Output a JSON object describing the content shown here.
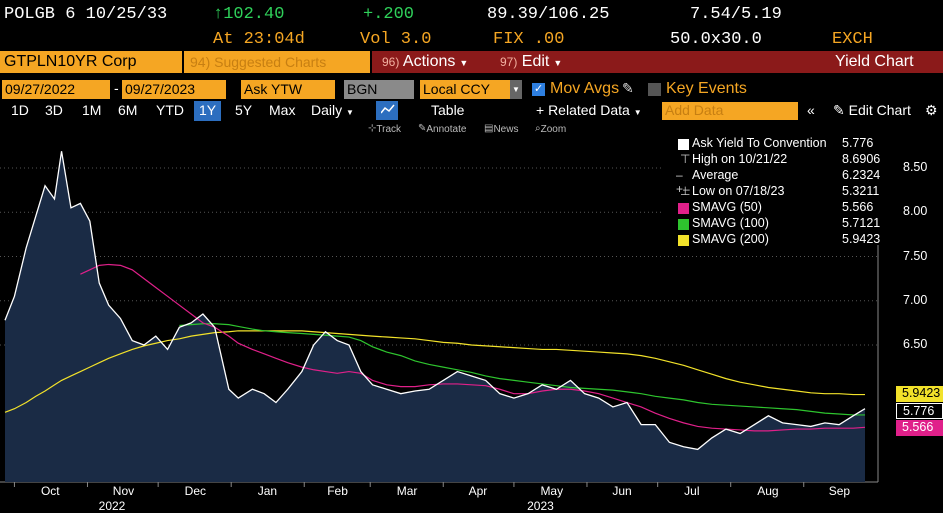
{
  "quote": {
    "ticker": "POLGB 6 10/25/33",
    "price": "↑102.40",
    "change": "+.200",
    "range": "89.39/106.25",
    "yield_range": "7.54/5.19",
    "time": "At 23:04d",
    "volume": "Vol 3.0",
    "fix": "FIX .00",
    "size": "50.0x30.0",
    "exch": "EXCH"
  },
  "toolbar": {
    "security": "GTPLN10YR Corp",
    "suggested_num": "94)",
    "suggested": "Suggested Charts",
    "actions_num": "96)",
    "actions": "Actions",
    "edit_num": "97)",
    "edit": "Edit",
    "title": "Yield Chart"
  },
  "options": {
    "start_date": "09/27/2022",
    "dash": "-",
    "end_date": "09/27/2023",
    "field": "Ask YTW",
    "source": "BGN",
    "currency": "Local CCY",
    "mov_avgs": "Mov Avgs",
    "key_events": "Key Events"
  },
  "periods": {
    "items": [
      "1D",
      "3D",
      "1M",
      "6M",
      "YTD",
      "1Y",
      "5Y",
      "Max"
    ],
    "active": "1Y",
    "daily": "Daily",
    "table": "Table",
    "related": "+ Related Data",
    "add_data": "Add Data",
    "edit_chart": "Edit Chart"
  },
  "tools": {
    "track": "Track",
    "annotate": "Annotate",
    "news": "News",
    "zoom": "Zoom"
  },
  "legend": [
    {
      "name": "Ask Yield To Convention",
      "value": "5.776",
      "color": "#ffffff",
      "kind": "box"
    },
    {
      "name": "High on 10/21/22",
      "value": "8.6906",
      "color": "#ffffff",
      "kind": "high"
    },
    {
      "name": "Average",
      "value": "6.2324",
      "color": "#ffffff",
      "kind": "avg"
    },
    {
      "name": "Low on 07/18/23",
      "value": "5.3211",
      "color": "#ffffff",
      "kind": "low"
    },
    {
      "name": "SMAVG (50)",
      "value": "5.566",
      "color": "#e0208a",
      "kind": "box"
    },
    {
      "name": "SMAVG (100)",
      "value": "5.7121",
      "color": "#2ec42e",
      "kind": "box"
    },
    {
      "name": "SMAVG (200)",
      "value": "5.9423",
      "color": "#f2e22a",
      "kind": "box"
    }
  ],
  "tags": {
    "sma200": "5.9423",
    "last": "5.776",
    "sma50": "5.566"
  },
  "colors": {
    "bloomberg_orange": "#f5a623",
    "area_fill": "#1a2b45",
    "price_line": "#ffffff",
    "sma50": "#e0208a",
    "sma100": "#2ec42e",
    "sma200": "#f2e22a"
  },
  "chart_data": {
    "type": "area",
    "title": "",
    "xlabel": "",
    "ylabel": "",
    "ylim": [
      5.2,
      8.9
    ],
    "y_ticks": [
      "8.50",
      "8.00",
      "7.50",
      "7.00",
      "6.50"
    ],
    "x_ticks": [
      "Oct",
      "Nov",
      "Dec",
      "Jan",
      "Feb",
      "Mar",
      "Apr",
      "May",
      "Jun",
      "Jul",
      "Aug",
      "Sep"
    ],
    "year_labels": [
      "2022",
      "2023"
    ],
    "x": [
      "2022-09-27",
      "2022-10-01",
      "2022-10-06",
      "2022-10-10",
      "2022-10-14",
      "2022-10-18",
      "2022-10-21",
      "2022-10-25",
      "2022-10-29",
      "2022-11-02",
      "2022-11-06",
      "2022-11-10",
      "2022-11-15",
      "2022-11-20",
      "2022-11-25",
      "2022-11-30",
      "2022-12-05",
      "2022-12-10",
      "2022-12-15",
      "2022-12-20",
      "2022-12-25",
      "2022-12-31",
      "2023-01-04",
      "2023-01-10",
      "2023-01-15",
      "2023-01-20",
      "2023-01-25",
      "2023-01-31",
      "2023-02-05",
      "2023-02-10",
      "2023-02-15",
      "2023-02-20",
      "2023-02-25",
      "2023-03-02",
      "2023-03-08",
      "2023-03-14",
      "2023-03-20",
      "2023-03-26",
      "2023-04-01",
      "2023-04-07",
      "2023-04-13",
      "2023-04-19",
      "2023-04-25",
      "2023-05-01",
      "2023-05-07",
      "2023-05-13",
      "2023-05-19",
      "2023-05-25",
      "2023-05-31",
      "2023-06-06",
      "2023-06-12",
      "2023-06-18",
      "2023-06-24",
      "2023-06-30",
      "2023-07-06",
      "2023-07-12",
      "2023-07-18",
      "2023-07-24",
      "2023-07-30",
      "2023-08-05",
      "2023-08-11",
      "2023-08-17",
      "2023-08-23",
      "2023-08-29",
      "2023-09-04",
      "2023-09-10",
      "2023-09-16",
      "2023-09-22",
      "2023-09-27"
    ],
    "series": [
      {
        "name": "Ask Yield To Convention",
        "values": [
          6.78,
          7.05,
          7.6,
          7.95,
          8.3,
          8.15,
          8.69,
          8.05,
          8.1,
          7.9,
          7.2,
          6.95,
          6.8,
          6.55,
          6.5,
          6.6,
          6.45,
          6.7,
          6.75,
          6.85,
          6.7,
          6.0,
          5.9,
          6.0,
          5.95,
          5.85,
          6.0,
          6.2,
          6.5,
          6.65,
          6.55,
          6.5,
          6.2,
          6.05,
          6.0,
          5.95,
          5.98,
          6.0,
          6.1,
          6.2,
          6.15,
          6.1,
          5.95,
          5.9,
          5.95,
          6.05,
          6.0,
          6.1,
          5.95,
          5.9,
          5.8,
          5.85,
          5.6,
          5.6,
          5.4,
          5.35,
          5.32,
          5.45,
          5.55,
          5.5,
          5.6,
          5.7,
          5.62,
          5.6,
          5.58,
          5.62,
          5.6,
          5.7,
          5.78
        ]
      },
      {
        "name": "SMAVG (50)",
        "values": [
          null,
          null,
          null,
          null,
          null,
          null,
          null,
          null,
          7.3,
          7.35,
          7.4,
          7.41,
          7.4,
          7.35,
          7.25,
          7.15,
          7.05,
          6.95,
          6.85,
          6.75,
          6.7,
          6.6,
          6.52,
          6.45,
          6.4,
          6.35,
          6.3,
          6.25,
          6.22,
          6.2,
          6.18,
          6.2,
          6.18,
          6.1,
          6.05,
          6.03,
          6.03,
          6.05,
          6.06,
          6.06,
          6.05,
          6.04,
          6.0,
          5.95,
          5.95,
          5.98,
          6.0,
          6.0,
          5.98,
          5.95,
          5.9,
          5.85,
          5.8,
          5.73,
          5.67,
          5.62,
          5.58,
          5.56,
          5.55,
          5.54,
          5.53,
          5.53,
          5.54,
          5.55,
          5.55,
          5.56,
          5.56,
          5.56,
          5.57
        ]
      },
      {
        "name": "SMAVG (100)",
        "values": [
          null,
          null,
          null,
          null,
          null,
          null,
          null,
          null,
          null,
          null,
          null,
          null,
          null,
          null,
          null,
          null,
          null,
          6.72,
          6.73,
          6.74,
          6.74,
          6.73,
          6.71,
          6.68,
          6.66,
          6.65,
          6.64,
          6.63,
          6.62,
          6.61,
          6.6,
          6.59,
          6.55,
          6.48,
          6.42,
          6.38,
          6.32,
          6.28,
          6.25,
          6.22,
          6.19,
          6.15,
          6.12,
          6.1,
          6.08,
          6.06,
          6.04,
          6.02,
          6.01,
          6.0,
          5.99,
          5.97,
          5.95,
          5.92,
          5.9,
          5.88,
          5.85,
          5.83,
          5.82,
          5.81,
          5.8,
          5.79,
          5.78,
          5.77,
          5.75,
          5.73,
          5.72,
          5.71,
          5.71
        ]
      },
      {
        "name": "SMAVG (200)",
        "values": [
          5.74,
          5.78,
          5.85,
          5.92,
          5.98,
          6.05,
          6.1,
          6.15,
          6.2,
          6.25,
          6.3,
          6.35,
          6.4,
          6.45,
          6.49,
          6.52,
          6.55,
          6.57,
          6.6,
          6.62,
          6.64,
          6.65,
          6.66,
          6.66,
          6.66,
          6.66,
          6.66,
          6.66,
          6.65,
          6.64,
          6.63,
          6.62,
          6.61,
          6.6,
          6.59,
          6.58,
          6.57,
          6.55,
          6.53,
          6.52,
          6.5,
          6.49,
          6.48,
          6.47,
          6.46,
          6.45,
          6.45,
          6.44,
          6.43,
          6.42,
          6.41,
          6.4,
          6.38,
          6.35,
          6.31,
          6.27,
          6.22,
          6.17,
          6.12,
          6.08,
          6.05,
          6.02,
          6.0,
          5.98,
          5.96,
          5.95,
          5.95,
          5.94,
          5.94
        ]
      }
    ]
  }
}
